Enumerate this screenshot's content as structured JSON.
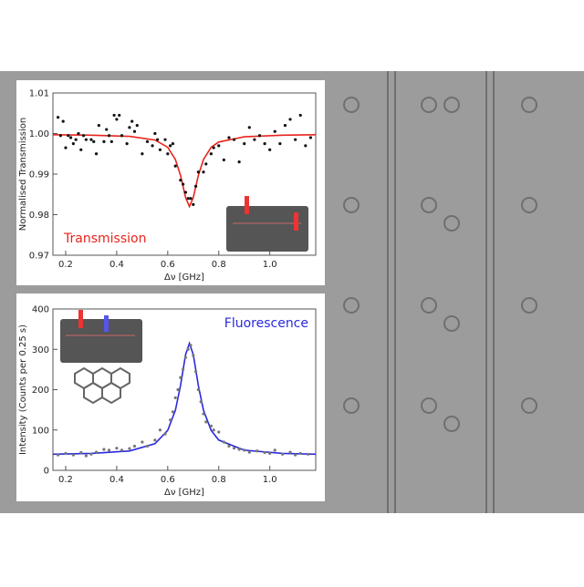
{
  "chart_data": [
    {
      "type": "scatter",
      "xlabel": "Δν [GHz]",
      "ylabel": "Normalised Transmission",
      "annotation": {
        "text": "Transmission",
        "color": "#e8241c"
      },
      "xlim": [
        0.15,
        1.18
      ],
      "ylim": [
        0.97,
        1.01
      ],
      "xticks": [
        0.2,
        0.4,
        0.6,
        0.8,
        {
          "value": 1.0,
          "label": "1.0"
        }
      ],
      "yticks": [
        0.97,
        0.98,
        0.99,
        {
          "value": 1.0,
          "label": "1.00"
        },
        1.01
      ],
      "points": {
        "color": "#111111",
        "x": [
          0.17,
          0.18,
          0.19,
          0.2,
          0.21,
          0.22,
          0.23,
          0.24,
          0.25,
          0.26,
          0.27,
          0.28,
          0.3,
          0.31,
          0.32,
          0.33,
          0.35,
          0.36,
          0.37,
          0.38,
          0.39,
          0.4,
          0.41,
          0.42,
          0.44,
          0.45,
          0.46,
          0.47,
          0.48,
          0.5,
          0.52,
          0.54,
          0.55,
          0.56,
          0.57,
          0.59,
          0.6,
          0.61,
          0.62,
          0.63,
          0.65,
          0.66,
          0.67,
          0.68,
          0.69,
          0.7,
          0.71,
          0.72,
          0.74,
          0.75,
          0.77,
          0.78,
          0.8,
          0.82,
          0.84,
          0.86,
          0.88,
          0.9,
          0.92,
          0.94,
          0.96,
          0.98,
          1.0,
          1.02,
          1.04,
          1.06,
          1.08,
          1.1,
          1.12,
          1.14,
          1.16
        ],
        "values": [
          1.004,
          0.9995,
          1.003,
          0.9965,
          0.9995,
          0.999,
          0.9975,
          0.9985,
          1.0,
          0.996,
          0.9995,
          0.9985,
          0.9985,
          0.998,
          0.995,
          1.002,
          0.998,
          1.001,
          0.9995,
          0.998,
          1.0045,
          1.0035,
          1.0045,
          0.9995,
          0.9975,
          1.0015,
          1.003,
          1.0005,
          1.002,
          0.995,
          0.998,
          0.997,
          1.0,
          0.9985,
          0.996,
          0.9985,
          0.995,
          0.997,
          0.9975,
          0.992,
          0.9885,
          0.9875,
          0.9855,
          0.984,
          0.984,
          0.9825,
          0.987,
          0.9905,
          0.9905,
          0.9925,
          0.995,
          0.9965,
          0.997,
          0.9935,
          0.999,
          0.9985,
          0.993,
          0.9975,
          1.0015,
          0.9985,
          0.9995,
          0.9975,
          0.996,
          1.0005,
          0.9975,
          1.002,
          1.0035,
          0.9985,
          1.0045,
          0.997,
          0.999
        ]
      },
      "fit": {
        "color": "#e8241c",
        "x": [
          0.15,
          0.3,
          0.45,
          0.55,
          0.6,
          0.63,
          0.65,
          0.67,
          0.685,
          0.7,
          0.72,
          0.74,
          0.77,
          0.8,
          0.9,
          1.05,
          1.18
        ],
        "values": [
          0.9997,
          0.9996,
          0.9993,
          0.9984,
          0.9966,
          0.9936,
          0.9897,
          0.9842,
          0.982,
          0.9842,
          0.9897,
          0.9936,
          0.9966,
          0.9979,
          0.9992,
          0.9996,
          0.9997
        ]
      }
    },
    {
      "type": "scatter",
      "xlabel": "Δν [GHz]",
      "ylabel": "Intensity (Counts per 0.25 s)",
      "annotation": {
        "text": "Fluorescence",
        "color": "#2a2adc"
      },
      "xlim": [
        0.15,
        1.18
      ],
      "ylim": [
        0,
        400
      ],
      "xticks": [
        0.2,
        0.4,
        0.6,
        0.8,
        {
          "value": 1.0,
          "label": "1.0"
        }
      ],
      "yticks": [
        0,
        100,
        200,
        300,
        400
      ],
      "points": {
        "color": "#777777",
        "x": [
          0.17,
          0.2,
          0.23,
          0.26,
          0.28,
          0.3,
          0.32,
          0.35,
          0.37,
          0.4,
          0.42,
          0.45,
          0.47,
          0.5,
          0.52,
          0.55,
          0.57,
          0.59,
          0.61,
          0.62,
          0.63,
          0.64,
          0.65,
          0.66,
          0.67,
          0.68,
          0.69,
          0.7,
          0.71,
          0.72,
          0.73,
          0.74,
          0.75,
          0.77,
          0.78,
          0.8,
          0.82,
          0.84,
          0.86,
          0.88,
          0.9,
          0.92,
          0.95,
          0.98,
          1.0,
          1.02,
          1.05,
          1.08,
          1.1,
          1.12,
          1.15
        ],
        "values": [
          38,
          42,
          38,
          44,
          36,
          40,
          45,
          52,
          50,
          55,
          50,
          54,
          60,
          70,
          60,
          75,
          100,
          90,
          125,
          145,
          180,
          200,
          230,
          250,
          280,
          300,
          310,
          285,
          245,
          200,
          170,
          140,
          120,
          110,
          100,
          95,
          70,
          60,
          55,
          52,
          50,
          45,
          48,
          44,
          42,
          50,
          40,
          45,
          38,
          42,
          40
        ]
      },
      "fit": {
        "color": "#2a2adc",
        "x": [
          0.15,
          0.3,
          0.45,
          0.55,
          0.6,
          0.63,
          0.65,
          0.67,
          0.685,
          0.7,
          0.72,
          0.74,
          0.77,
          0.8,
          0.9,
          1.05,
          1.18
        ],
        "values": [
          40,
          42,
          48,
          66,
          99,
          149,
          210,
          287,
          315,
          287,
          210,
          149,
          99,
          75,
          50,
          42,
          40
        ]
      }
    }
  ]
}
